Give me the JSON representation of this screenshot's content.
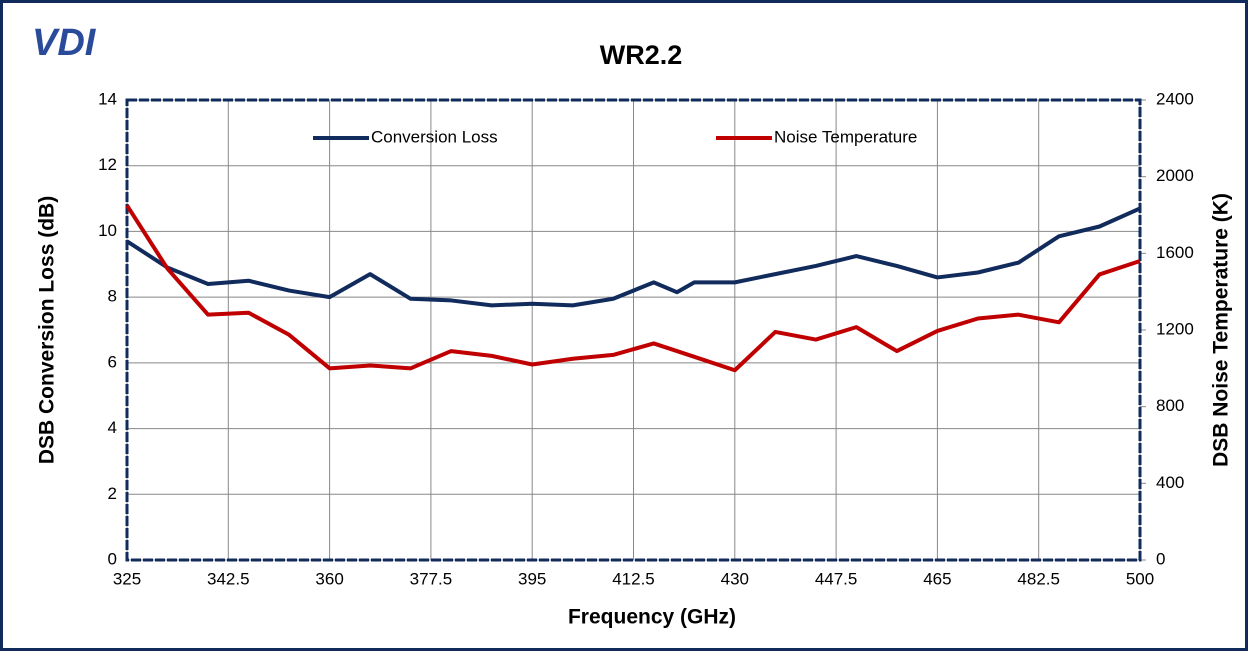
{
  "chart_data": {
    "type": "line",
    "logo": "VDI",
    "title": "WR2.2",
    "xlabel": "Frequency (GHz)",
    "ylabel": "DSB Conversion Loss (dB)",
    "y2label": "DSB Noise Temperature (K)",
    "x": [
      325,
      332,
      339,
      346,
      353,
      360,
      367,
      374,
      381,
      388,
      395,
      402,
      409,
      416,
      420,
      423,
      430,
      437,
      444,
      451,
      458,
      465,
      472,
      479,
      486,
      493,
      500
    ],
    "series": [
      {
        "name": "Conversion Loss",
        "color": "#112b5c",
        "values": [
          9.7,
          8.9,
          8.4,
          8.5,
          8.2,
          8.0,
          8.7,
          7.95,
          7.9,
          7.75,
          7.8,
          7.75,
          7.95,
          8.45,
          8.15,
          8.45,
          8.45,
          8.7,
          8.95,
          9.25,
          8.95,
          8.6,
          8.75,
          9.05,
          9.85,
          10.15,
          10.7
        ]
      },
      {
        "name": "Noise Temperature",
        "color": "#c00000",
        "axis": "y2",
        "values": [
          1850,
          1520,
          1280,
          1290,
          1175,
          1000,
          1015,
          1000,
          1090,
          1065,
          1020,
          1050,
          1070,
          1130,
          1090,
          1060,
          990,
          1190,
          1150,
          1215,
          1090,
          1195,
          1260,
          1280,
          1240,
          1490,
          1560
        ]
      }
    ],
    "xlim": [
      325,
      500
    ],
    "xticks": [
      325,
      342.5,
      360,
      377.5,
      395,
      412.5,
      430,
      447.5,
      465,
      482.5,
      500
    ],
    "ylim": [
      0,
      14
    ],
    "yticks": [
      0,
      2,
      4,
      6,
      8,
      10,
      12,
      14
    ],
    "y2lim": [
      0,
      2400
    ],
    "y2ticks": [
      0,
      400,
      800,
      1200,
      1600,
      2000,
      2400
    ],
    "grid": true,
    "legend": "top"
  }
}
